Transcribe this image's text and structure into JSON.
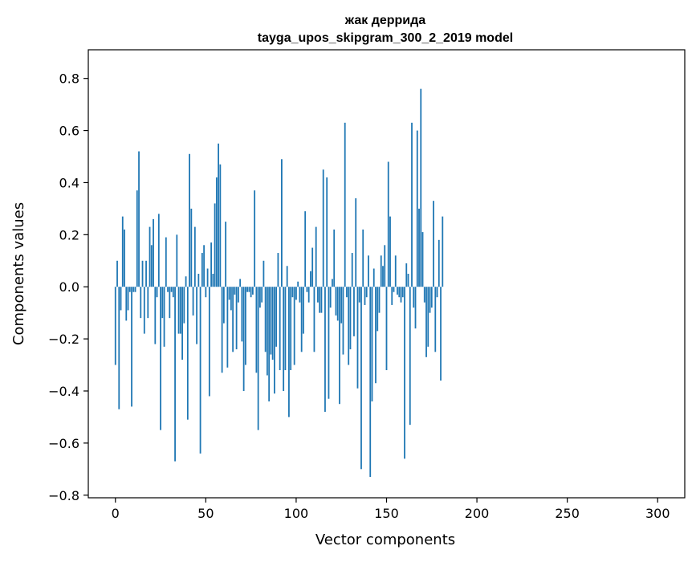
{
  "chart_data": {
    "type": "bar",
    "title": "жак деррида",
    "subtitle": "tayga_upos_skipgram_300_2_2019 model",
    "xlabel": "Vector components",
    "ylabel": "Components values",
    "xlim": [
      -15,
      315
    ],
    "ylim": [
      -0.81,
      0.91
    ],
    "xticks": [
      0,
      50,
      100,
      150,
      200,
      250,
      300
    ],
    "yticks": [
      -0.8,
      -0.6,
      -0.4,
      -0.2,
      0.0,
      0.2,
      0.4,
      0.6,
      0.8
    ],
    "ytick_labels": [
      "−0.8",
      "−0.6",
      "−0.4",
      "−0.2",
      "0.0",
      "0.2",
      "0.4",
      "0.6",
      "0.8"
    ],
    "grid": false,
    "bar_color": "#1f77b4",
    "values": [
      -0.3,
      0.1,
      -0.47,
      -0.09,
      0.27,
      0.22,
      -0.13,
      -0.09,
      -0.02,
      -0.46,
      -0.02,
      -0.02,
      0.37,
      0.52,
      -0.12,
      0.1,
      -0.18,
      0.1,
      -0.12,
      0.23,
      0.16,
      0.26,
      -0.22,
      -0.04,
      0.28,
      -0.55,
      -0.12,
      -0.23,
      0.19,
      -0.02,
      -0.12,
      -0.02,
      -0.04,
      -0.67,
      0.2,
      -0.18,
      -0.18,
      -0.28,
      -0.14,
      0.04,
      -0.51,
      0.51,
      0.3,
      -0.11,
      0.23,
      -0.22,
      0.05,
      -0.64,
      0.13,
      0.16,
      -0.04,
      0.07,
      -0.42,
      0.17,
      0.05,
      0.32,
      0.42,
      0.55,
      0.47,
      -0.33,
      -0.14,
      0.25,
      -0.31,
      -0.05,
      -0.09,
      -0.25,
      -0.03,
      -0.24,
      -0.06,
      0.03,
      -0.21,
      -0.4,
      -0.3,
      -0.02,
      -0.02,
      -0.04,
      -0.03,
      0.37,
      -0.33,
      -0.55,
      -0.08,
      -0.06,
      0.1,
      -0.25,
      -0.34,
      -0.44,
      -0.26,
      -0.28,
      -0.41,
      -0.23,
      0.13,
      -0.32,
      0.49,
      -0.4,
      -0.32,
      0.08,
      -0.5,
      -0.32,
      -0.04,
      -0.3,
      -0.05,
      0.02,
      -0.06,
      -0.25,
      -0.18,
      0.29,
      -0.02,
      -0.06,
      0.06,
      0.15,
      -0.25,
      0.23,
      -0.06,
      -0.1,
      -0.1,
      0.45,
      -0.48,
      0.42,
      -0.43,
      -0.08,
      0.03,
      0.22,
      -0.11,
      -0.13,
      -0.45,
      -0.14,
      -0.26,
      0.63,
      -0.04,
      -0.3,
      -0.24,
      0.13,
      -0.19,
      0.34,
      -0.39,
      -0.06,
      -0.7,
      0.22,
      -0.07,
      -0.04,
      0.12,
      -0.73,
      -0.44,
      0.07,
      -0.37,
      -0.17,
      -0.1,
      0.12,
      0.08,
      0.16,
      -0.32,
      0.48,
      0.27,
      -0.07,
      -0.02,
      0.12,
      -0.03,
      -0.04,
      -0.06,
      -0.04,
      -0.66,
      0.09,
      0.05,
      -0.53,
      0.63,
      -0.08,
      -0.16,
      0.6,
      0.3,
      0.76,
      0.21,
      -0.06,
      -0.27,
      -0.23,
      -0.1,
      -0.08,
      0.33,
      -0.25,
      -0.04,
      0.18,
      -0.36,
      0.27
    ]
  }
}
